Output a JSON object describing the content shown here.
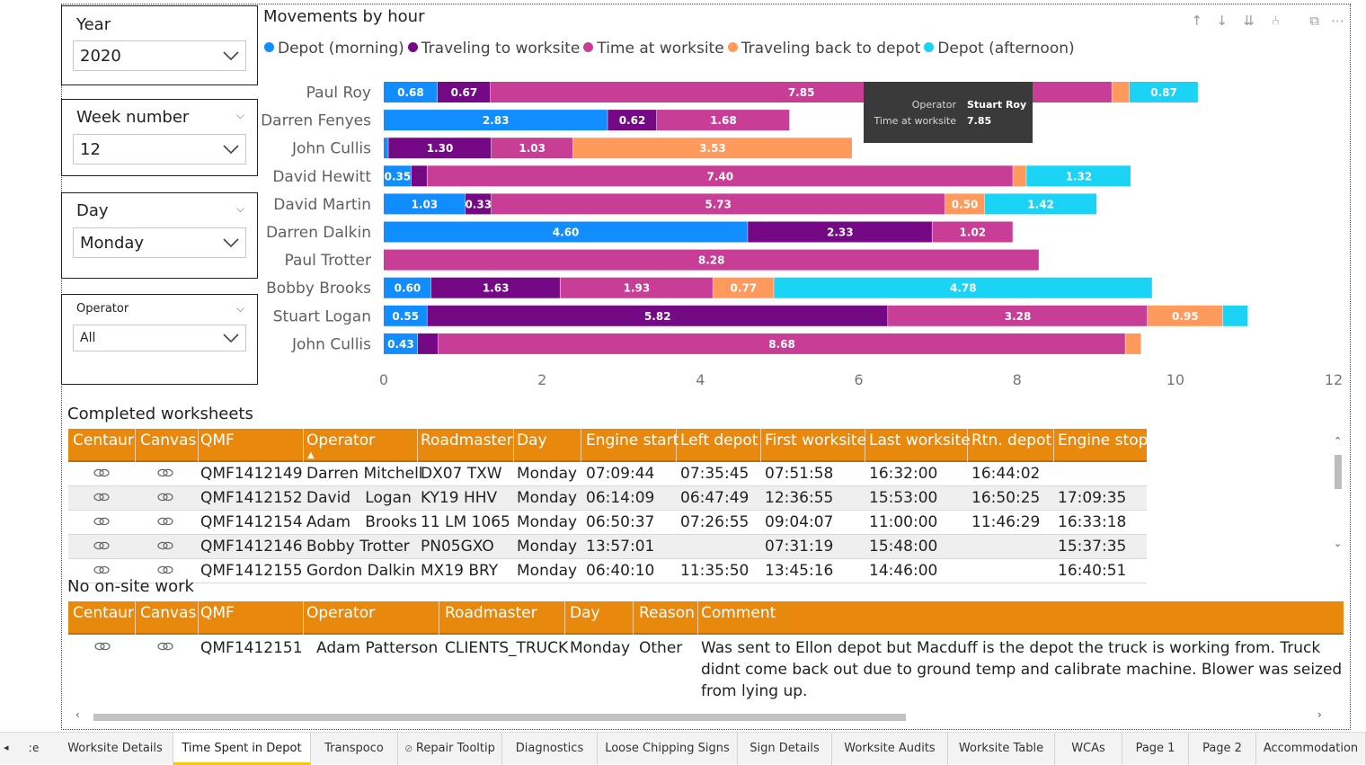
{
  "slicers": {
    "year": {
      "title": "Year",
      "value": "2020"
    },
    "week": {
      "title": "Week number",
      "value": "12"
    },
    "day": {
      "title": "Day",
      "value": "Monday"
    },
    "operator": {
      "title": "Operator",
      "value": "All"
    }
  },
  "chart": {
    "title": "Movements by hour",
    "toolbar": [
      "↑",
      "↓",
      "⇊",
      "⑃",
      "⧉",
      "⋯"
    ]
  },
  "chart_data": {
    "type": "bar",
    "orientation": "horizontal",
    "stacked": true,
    "categories": [
      "Paul  Roy",
      "Darren Fenyes",
      "John  Cullis",
      "David  Hewitt",
      "David  Martin",
      "Darren  Dalkin",
      "Paul  Trotter",
      "Bobby  Brooks",
      "Stuart  Logan",
      "John  Cullis"
    ],
    "series": [
      {
        "name": "Depot (morning)",
        "color": "#118dff",
        "values": [
          0.68,
          2.83,
          0.06,
          0.35,
          1.03,
          4.6,
          0,
          0.6,
          0.55,
          0.43
        ]
      },
      {
        "name": "Traveling to worksite",
        "color": "#750985",
        "values": [
          0.67,
          0.62,
          1.3,
          0.2,
          0.33,
          2.33,
          0,
          1.63,
          5.82,
          0.26
        ]
      },
      {
        "name": "Time at worksite",
        "color": "#c83d95",
        "values": [
          7.85,
          1.68,
          1.03,
          7.4,
          5.73,
          1.02,
          8.28,
          1.93,
          3.28,
          8.68
        ]
      },
      {
        "name": "Traveling back to depot",
        "color": "#ff9a5c",
        "values": [
          0.22,
          0,
          3.53,
          0.17,
          0.5,
          0,
          0,
          0.77,
          0.95,
          0.2
        ]
      },
      {
        "name": "Depot (afternoon)",
        "color": "#1ad3f5",
        "values": [
          0.87,
          0,
          0,
          1.32,
          1.42,
          0,
          0,
          4.78,
          0.32,
          0
        ]
      }
    ],
    "labels": [
      [
        "0.68",
        "0.67",
        "7.85",
        "",
        "0.87"
      ],
      [
        "2.83",
        "0.62",
        "1.68",
        "",
        ""
      ],
      [
        "",
        "1.30",
        "1.03",
        "3.53",
        ""
      ],
      [
        "0.35",
        "",
        "7.40",
        "",
        "1.32"
      ],
      [
        "1.03",
        "0.33",
        "5.73",
        "0.50",
        "1.42"
      ],
      [
        "4.60",
        "2.33",
        "1.02",
        "",
        ""
      ],
      [
        "",
        "",
        "8.28",
        "",
        ""
      ],
      [
        "0.60",
        "1.63",
        "1.93",
        "0.77",
        "4.78"
      ],
      [
        "0.55",
        "5.82",
        "3.28",
        "0.95",
        ""
      ],
      [
        "0.43",
        "",
        "8.68",
        "",
        ""
      ]
    ],
    "xlim": [
      0,
      12
    ],
    "x_ticks": [
      "0",
      "2",
      "4",
      "6",
      "8",
      "10",
      "12"
    ],
    "legend_position": "top-left",
    "grid": false
  },
  "tooltip": {
    "k1": "Operator",
    "v1": "Stuart Roy",
    "k2": "Time at worksite",
    "v2": "7.85"
  },
  "worksheets": {
    "title": "Completed worksheets",
    "columns": [
      "Centaur",
      "Canvas",
      "QMF",
      "Operator",
      "Roadmaster",
      "Day",
      "Engine start",
      "Left depot",
      "First worksite",
      "Last worksite",
      "Rtn. depot",
      "Engine stop"
    ],
    "rows": [
      [
        "QMF1412149",
        "Darren Mitchell",
        "DX07 TXW",
        "Monday",
        "07:09:44",
        "07:35:45",
        "07:51:58",
        "16:32:00",
        "16:44:02",
        ""
      ],
      [
        "QMF1412152",
        "David   Logan",
        "KY19 HHV",
        "Monday",
        "06:14:09",
        "06:47:49",
        "12:36:55",
        "15:53:00",
        "16:50:25",
        "17:09:35"
      ],
      [
        "QMF1412154",
        "Adam   Brooks",
        "11 LM 1065",
        "Monday",
        "06:50:37",
        "07:26:55",
        "09:04:07",
        "11:00:00",
        "11:46:29",
        "16:33:18"
      ],
      [
        "QMF1412146",
        "Bobby Trotter",
        "PN05GXO",
        "Monday",
        "13:57:01",
        "",
        "07:31:19",
        "15:48:00",
        "",
        "15:37:35"
      ],
      [
        "QMF1412155",
        "Gordon Dalkin",
        "MX19 BRY",
        "Monday",
        "06:40:10",
        "11:35:50",
        "13:45:16",
        "14:46:00",
        "",
        "16:40:51"
      ]
    ]
  },
  "noonsite": {
    "title": "No on-site work",
    "columns": [
      "Centaur",
      "Canvas",
      "QMF",
      "Operator",
      "Roadmaster",
      "Day",
      "Reason",
      "Comment"
    ],
    "row": {
      "qmf": "QMF1412151",
      "operator": "Adam  Patterson",
      "roadmaster": "CLIENTS_TRUCK",
      "day": "Monday",
      "reason": "Other",
      "comment": "Was sent to Ellon depot but Macduff is the depot the truck is working from. Truck didnt come back out due to ground temp and calibrate machine. Blower was seized from lying up."
    }
  },
  "tabs": {
    "prev_fragment": "ːe",
    "items": [
      "Worksite Details",
      "Time Spent in Depot",
      "Transpoco",
      "Repair Tooltip",
      "Diagnostics",
      "Loose Chipping Signs",
      "Sign Details",
      "Worksite Audits",
      "Worksite Table",
      "WCAs",
      "Page 1",
      "Page 2",
      "Accommodation"
    ],
    "active": "Time Spent in Depot"
  }
}
